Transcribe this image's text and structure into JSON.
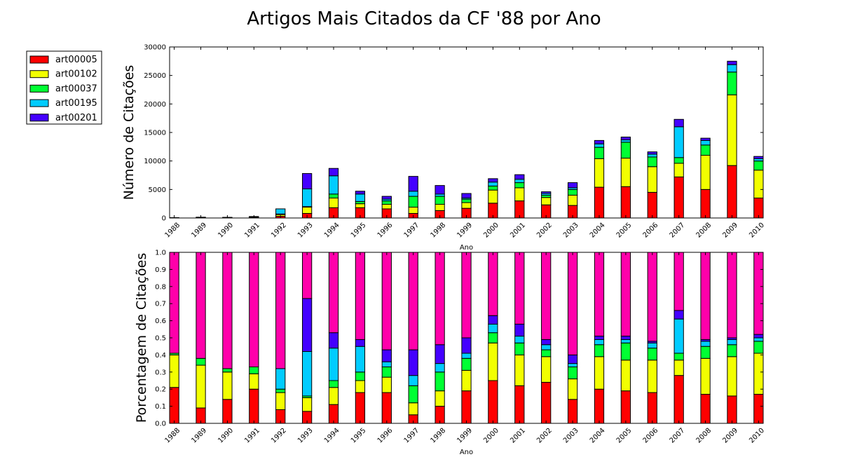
{
  "title": "Artigos Mais Citados da CF '88 por Ano",
  "legend": {
    "placement": "outside-left-top",
    "items": [
      {
        "label": "art00005",
        "color": "#ff0000"
      },
      {
        "label": "art00102",
        "color": "#f2ff00"
      },
      {
        "label": "art00037",
        "color": "#00ff33"
      },
      {
        "label": "art00195",
        "color": "#00ccff"
      },
      {
        "label": "art00201",
        "color": "#4400ff"
      }
    ]
  },
  "remainder_color": "#ff00aa",
  "chart_data": [
    {
      "type": "bar",
      "stacked": true,
      "xlabel": "Ano",
      "ylabel": "Número de Citações",
      "ylim": [
        0,
        30000
      ],
      "yticks": [
        "0",
        "5000",
        "10000",
        "15000",
        "20000",
        "25000",
        "30000"
      ],
      "yticks_values": [
        0,
        5000,
        10000,
        15000,
        20000,
        25000,
        30000
      ],
      "categories": [
        "1988",
        "1989",
        "1990",
        "1991",
        "1992",
        "1993",
        "1994",
        "1995",
        "1996",
        "1997",
        "1998",
        "1999",
        "2000",
        "2001",
        "2002",
        "2003",
        "2004",
        "2005",
        "2006",
        "2007",
        "2008",
        "2009",
        "2010"
      ],
      "series": [
        {
          "name": "art00005",
          "values": [
            40,
            40,
            40,
            120,
            300,
            800,
            1800,
            1800,
            1600,
            800,
            1300,
            1700,
            2600,
            3000,
            2300,
            2200,
            5400,
            5500,
            4500,
            7200,
            5000,
            9200,
            3500
          ]
        },
        {
          "name": "art00102",
          "values": [
            20,
            80,
            60,
            100,
            300,
            1100,
            1700,
            700,
            800,
            1100,
            1100,
            1000,
            2300,
            2300,
            1300,
            1800,
            5000,
            5000,
            4500,
            2400,
            6000,
            12400,
            4900
          ]
        },
        {
          "name": "art00037",
          "values": [
            0,
            20,
            10,
            40,
            100,
            100,
            700,
            400,
            600,
            1900,
            1400,
            600,
            700,
            900,
            400,
            1000,
            2000,
            2800,
            1700,
            1000,
            1800,
            4000,
            1600
          ]
        },
        {
          "name": "art00195",
          "values": [
            0,
            0,
            0,
            0,
            900,
            3100,
            3200,
            1300,
            300,
            900,
            400,
            200,
            700,
            600,
            300,
            300,
            600,
            400,
            500,
            5400,
            800,
            1300,
            400
          ]
        },
        {
          "name": "art00201",
          "values": [
            0,
            0,
            0,
            0,
            0,
            2700,
            1300,
            500,
            500,
            2600,
            1500,
            800,
            600,
            800,
            300,
            900,
            600,
            500,
            400,
            1300,
            400,
            600,
            400
          ]
        }
      ],
      "grid": false
    },
    {
      "type": "bar",
      "stacked": true,
      "xlabel": "Ano",
      "ylabel": "Porcentagem de Citações",
      "ylim": [
        0,
        1.0
      ],
      "yticks": [
        "0.0",
        "0.1",
        "0.2",
        "0.3",
        "0.4",
        "0.5",
        "0.6",
        "0.7",
        "0.8",
        "0.9",
        "1.0"
      ],
      "yticks_values": [
        0,
        0.1,
        0.2,
        0.3,
        0.4,
        0.5,
        0.6,
        0.7,
        0.8,
        0.9,
        1.0
      ],
      "categories": [
        "1988",
        "1989",
        "1990",
        "1991",
        "1992",
        "1993",
        "1994",
        "1995",
        "1996",
        "1997",
        "1998",
        "1999",
        "2000",
        "2001",
        "2002",
        "2003",
        "2004",
        "2005",
        "2006",
        "2007",
        "2008",
        "2009",
        "2010"
      ],
      "series": [
        {
          "name": "art00005",
          "values": [
            0.21,
            0.09,
            0.14,
            0.2,
            0.08,
            0.07,
            0.11,
            0.18,
            0.18,
            0.05,
            0.1,
            0.19,
            0.25,
            0.22,
            0.24,
            0.14,
            0.2,
            0.19,
            0.18,
            0.28,
            0.17,
            0.16,
            0.17
          ]
        },
        {
          "name": "art00102",
          "values": [
            0.19,
            0.25,
            0.16,
            0.09,
            0.1,
            0.08,
            0.1,
            0.07,
            0.09,
            0.07,
            0.09,
            0.12,
            0.22,
            0.18,
            0.15,
            0.12,
            0.19,
            0.18,
            0.19,
            0.09,
            0.21,
            0.23,
            0.24
          ]
        },
        {
          "name": "art00037",
          "values": [
            0.01,
            0.04,
            0.02,
            0.04,
            0.02,
            0.01,
            0.04,
            0.05,
            0.06,
            0.1,
            0.11,
            0.07,
            0.06,
            0.07,
            0.04,
            0.07,
            0.07,
            0.1,
            0.07,
            0.04,
            0.07,
            0.07,
            0.07
          ]
        },
        {
          "name": "art00195",
          "values": [
            0,
            0,
            0,
            0,
            0.12,
            0.26,
            0.19,
            0.15,
            0.03,
            0.06,
            0.05,
            0.03,
            0.05,
            0.04,
            0.03,
            0.02,
            0.03,
            0.02,
            0.03,
            0.2,
            0.03,
            0.03,
            0.02
          ]
        },
        {
          "name": "art00201",
          "values": [
            0,
            0,
            0,
            0,
            0,
            0.31,
            0.09,
            0.04,
            0.07,
            0.15,
            0.11,
            0.09,
            0.05,
            0.07,
            0.03,
            0.05,
            0.02,
            0.02,
            0.01,
            0.05,
            0.01,
            0.01,
            0.02
          ]
        }
      ],
      "remainder_series": {
        "values": [
          0.59,
          0.62,
          0.68,
          0.67,
          0.68,
          0.27,
          0.47,
          0.51,
          0.57,
          0.57,
          0.54,
          0.5,
          0.37,
          0.42,
          0.51,
          0.6,
          0.49,
          0.49,
          0.52,
          0.34,
          0.51,
          0.5,
          0.48
        ]
      },
      "grid": false
    }
  ]
}
